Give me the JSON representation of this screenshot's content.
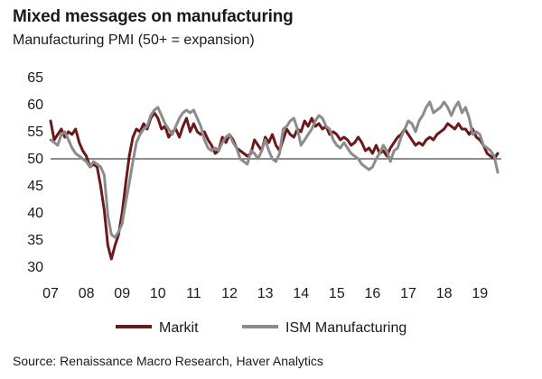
{
  "title": "Mixed messages on manufacturing",
  "subtitle": "Manufacturing PMI (50+ = expansion)",
  "source": "Source: Renaissance Macro Research, Haver Analytics",
  "chart_data": {
    "type": "line",
    "ylim": [
      30,
      65
    ],
    "yticks": [
      30,
      35,
      40,
      45,
      50,
      55,
      60,
      65
    ],
    "xlim": [
      2007,
      2019.6
    ],
    "xticks": [
      {
        "label": "07",
        "value": 2007
      },
      {
        "label": "08",
        "value": 2008
      },
      {
        "label": "09",
        "value": 2009
      },
      {
        "label": "10",
        "value": 2010
      },
      {
        "label": "11",
        "value": 2011
      },
      {
        "label": "12",
        "value": 2012
      },
      {
        "label": "13",
        "value": 2013
      },
      {
        "label": "14",
        "value": 2014
      },
      {
        "label": "15",
        "value": 2015
      },
      {
        "label": "16",
        "value": 2016
      },
      {
        "label": "17",
        "value": 2017
      },
      {
        "label": "18",
        "value": 2018
      },
      {
        "label": "19",
        "value": 2019
      }
    ],
    "reference_line": 50,
    "legend_position": "bottom",
    "series": [
      {
        "name": "Markit",
        "color": "#6b1a1a",
        "points": [
          [
            2007.0,
            57.0
          ],
          [
            2007.1,
            53.5
          ],
          [
            2007.2,
            54.5
          ],
          [
            2007.3,
            55.5
          ],
          [
            2007.4,
            54.0
          ],
          [
            2007.5,
            55.0
          ],
          [
            2007.6,
            54.5
          ],
          [
            2007.7,
            55.5
          ],
          [
            2007.8,
            53.0
          ],
          [
            2007.9,
            51.5
          ],
          [
            2008.0,
            50.5
          ],
          [
            2008.1,
            48.5
          ],
          [
            2008.2,
            49.0
          ],
          [
            2008.3,
            48.5
          ],
          [
            2008.4,
            45.0
          ],
          [
            2008.5,
            40.5
          ],
          [
            2008.6,
            34.0
          ],
          [
            2008.7,
            31.5
          ],
          [
            2008.8,
            34.0
          ],
          [
            2008.9,
            36.0
          ],
          [
            2009.0,
            40.0
          ],
          [
            2009.1,
            45.5
          ],
          [
            2009.2,
            50.5
          ],
          [
            2009.3,
            54.0
          ],
          [
            2009.4,
            55.5
          ],
          [
            2009.5,
            55.0
          ],
          [
            2009.6,
            56.5
          ],
          [
            2009.7,
            55.5
          ],
          [
            2009.8,
            57.5
          ],
          [
            2009.9,
            58.5
          ],
          [
            2010.0,
            57.5
          ],
          [
            2010.1,
            55.5
          ],
          [
            2010.2,
            56.0
          ],
          [
            2010.3,
            54.0
          ],
          [
            2010.4,
            55.0
          ],
          [
            2010.5,
            55.5
          ],
          [
            2010.6,
            54.0
          ],
          [
            2010.7,
            56.0
          ],
          [
            2010.8,
            57.5
          ],
          [
            2010.9,
            55.0
          ],
          [
            2011.0,
            56.5
          ],
          [
            2011.1,
            55.0
          ],
          [
            2011.2,
            54.5
          ],
          [
            2011.3,
            55.0
          ],
          [
            2011.4,
            53.5
          ],
          [
            2011.5,
            52.5
          ],
          [
            2011.6,
            51.0
          ],
          [
            2011.7,
            51.5
          ],
          [
            2011.8,
            54.0
          ],
          [
            2011.9,
            53.0
          ],
          [
            2012.0,
            54.5
          ],
          [
            2012.1,
            53.5
          ],
          [
            2012.2,
            52.0
          ],
          [
            2012.3,
            51.5
          ],
          [
            2012.4,
            51.0
          ],
          [
            2012.5,
            50.5
          ],
          [
            2012.6,
            51.0
          ],
          [
            2012.7,
            53.5
          ],
          [
            2012.8,
            52.5
          ],
          [
            2012.9,
            51.5
          ],
          [
            2013.0,
            54.0
          ],
          [
            2013.1,
            53.0
          ],
          [
            2013.2,
            54.5
          ],
          [
            2013.3,
            52.5
          ],
          [
            2013.4,
            51.5
          ],
          [
            2013.5,
            53.5
          ],
          [
            2013.6,
            55.5
          ],
          [
            2013.7,
            54.5
          ],
          [
            2013.8,
            54.0
          ],
          [
            2013.9,
            55.5
          ],
          [
            2014.0,
            55.0
          ],
          [
            2014.1,
            57.0
          ],
          [
            2014.2,
            56.0
          ],
          [
            2014.3,
            57.5
          ],
          [
            2014.4,
            56.0
          ],
          [
            2014.5,
            56.5
          ],
          [
            2014.6,
            55.5
          ],
          [
            2014.7,
            56.0
          ],
          [
            2014.8,
            54.5
          ],
          [
            2014.9,
            55.0
          ],
          [
            2015.0,
            54.5
          ],
          [
            2015.1,
            53.5
          ],
          [
            2015.2,
            54.0
          ],
          [
            2015.3,
            53.5
          ],
          [
            2015.4,
            52.5
          ],
          [
            2015.5,
            53.0
          ],
          [
            2015.6,
            54.0
          ],
          [
            2015.7,
            53.0
          ],
          [
            2015.8,
            51.5
          ],
          [
            2015.9,
            52.0
          ],
          [
            2016.0,
            51.0
          ],
          [
            2016.1,
            52.5
          ],
          [
            2016.2,
            51.0
          ],
          [
            2016.3,
            51.5
          ],
          [
            2016.4,
            50.5
          ],
          [
            2016.5,
            52.0
          ],
          [
            2016.6,
            53.0
          ],
          [
            2016.7,
            54.0
          ],
          [
            2016.8,
            54.5
          ],
          [
            2016.9,
            55.5
          ],
          [
            2017.0,
            54.5
          ],
          [
            2017.1,
            53.5
          ],
          [
            2017.2,
            52.5
          ],
          [
            2017.3,
            53.0
          ],
          [
            2017.4,
            52.5
          ],
          [
            2017.5,
            53.5
          ],
          [
            2017.6,
            54.0
          ],
          [
            2017.7,
            53.5
          ],
          [
            2017.8,
            54.5
          ],
          [
            2017.9,
            55.0
          ],
          [
            2018.0,
            55.5
          ],
          [
            2018.1,
            56.5
          ],
          [
            2018.2,
            56.0
          ],
          [
            2018.3,
            55.5
          ],
          [
            2018.4,
            56.5
          ],
          [
            2018.5,
            55.5
          ],
          [
            2018.6,
            55.5
          ],
          [
            2018.7,
            54.5
          ],
          [
            2018.8,
            55.5
          ],
          [
            2018.9,
            54.0
          ],
          [
            2019.0,
            53.5
          ],
          [
            2019.1,
            52.5
          ],
          [
            2019.2,
            51.0
          ],
          [
            2019.3,
            50.5
          ],
          [
            2019.4,
            50.0
          ],
          [
            2019.5,
            51.0
          ]
        ]
      },
      {
        "name": "ISM Manufacturing",
        "color": "#8c8c8c",
        "points": [
          [
            2007.0,
            53.5
          ],
          [
            2007.1,
            53.0
          ],
          [
            2007.2,
            52.5
          ],
          [
            2007.3,
            54.5
          ],
          [
            2007.4,
            55.0
          ],
          [
            2007.5,
            53.5
          ],
          [
            2007.6,
            52.0
          ],
          [
            2007.7,
            51.0
          ],
          [
            2007.8,
            50.5
          ],
          [
            2007.9,
            50.0
          ],
          [
            2008.0,
            49.5
          ],
          [
            2008.1,
            48.5
          ],
          [
            2008.2,
            49.5
          ],
          [
            2008.3,
            49.0
          ],
          [
            2008.4,
            48.5
          ],
          [
            2008.5,
            47.0
          ],
          [
            2008.6,
            39.5
          ],
          [
            2008.7,
            36.0
          ],
          [
            2008.8,
            35.5
          ],
          [
            2008.9,
            36.5
          ],
          [
            2009.0,
            38.0
          ],
          [
            2009.1,
            42.0
          ],
          [
            2009.2,
            45.5
          ],
          [
            2009.3,
            49.5
          ],
          [
            2009.4,
            53.0
          ],
          [
            2009.5,
            54.5
          ],
          [
            2009.6,
            55.5
          ],
          [
            2009.7,
            56.0
          ],
          [
            2009.8,
            58.0
          ],
          [
            2009.9,
            59.0
          ],
          [
            2010.0,
            59.5
          ],
          [
            2010.1,
            58.0
          ],
          [
            2010.2,
            56.5
          ],
          [
            2010.3,
            55.5
          ],
          [
            2010.4,
            54.5
          ],
          [
            2010.5,
            56.0
          ],
          [
            2010.6,
            57.5
          ],
          [
            2010.7,
            58.5
          ],
          [
            2010.8,
            59.0
          ],
          [
            2010.9,
            58.5
          ],
          [
            2011.0,
            59.0
          ],
          [
            2011.1,
            57.5
          ],
          [
            2011.2,
            56.0
          ],
          [
            2011.3,
            53.5
          ],
          [
            2011.4,
            52.0
          ],
          [
            2011.5,
            51.5
          ],
          [
            2011.6,
            52.0
          ],
          [
            2011.7,
            51.5
          ],
          [
            2011.8,
            53.0
          ],
          [
            2011.9,
            54.0
          ],
          [
            2012.0,
            54.5
          ],
          [
            2012.1,
            53.0
          ],
          [
            2012.2,
            52.0
          ],
          [
            2012.3,
            50.0
          ],
          [
            2012.4,
            49.5
          ],
          [
            2012.5,
            49.0
          ],
          [
            2012.6,
            51.5
          ],
          [
            2012.7,
            51.0
          ],
          [
            2012.8,
            50.0
          ],
          [
            2012.9,
            51.5
          ],
          [
            2013.0,
            53.5
          ],
          [
            2013.1,
            51.5
          ],
          [
            2013.2,
            50.0
          ],
          [
            2013.3,
            49.5
          ],
          [
            2013.4,
            51.0
          ],
          [
            2013.5,
            55.5
          ],
          [
            2013.6,
            56.0
          ],
          [
            2013.7,
            57.0
          ],
          [
            2013.8,
            57.5
          ],
          [
            2013.9,
            55.5
          ],
          [
            2014.0,
            52.5
          ],
          [
            2014.1,
            53.5
          ],
          [
            2014.2,
            54.5
          ],
          [
            2014.3,
            55.5
          ],
          [
            2014.4,
            57.0
          ],
          [
            2014.5,
            58.0
          ],
          [
            2014.6,
            57.5
          ],
          [
            2014.7,
            56.0
          ],
          [
            2014.8,
            55.5
          ],
          [
            2014.9,
            53.5
          ],
          [
            2015.0,
            52.5
          ],
          [
            2015.1,
            52.0
          ],
          [
            2015.2,
            53.0
          ],
          [
            2015.3,
            52.0
          ],
          [
            2015.4,
            51.0
          ],
          [
            2015.5,
            50.5
          ],
          [
            2015.6,
            50.0
          ],
          [
            2015.7,
            49.0
          ],
          [
            2015.8,
            48.5
          ],
          [
            2015.9,
            48.0
          ],
          [
            2016.0,
            48.5
          ],
          [
            2016.1,
            50.0
          ],
          [
            2016.2,
            51.0
          ],
          [
            2016.3,
            52.5
          ],
          [
            2016.4,
            51.5
          ],
          [
            2016.5,
            49.5
          ],
          [
            2016.6,
            51.5
          ],
          [
            2016.7,
            52.0
          ],
          [
            2016.8,
            54.0
          ],
          [
            2016.9,
            55.5
          ],
          [
            2017.0,
            57.0
          ],
          [
            2017.1,
            56.5
          ],
          [
            2017.2,
            55.0
          ],
          [
            2017.3,
            57.0
          ],
          [
            2017.4,
            58.0
          ],
          [
            2017.5,
            59.5
          ],
          [
            2017.6,
            60.5
          ],
          [
            2017.7,
            58.5
          ],
          [
            2017.8,
            59.0
          ],
          [
            2017.9,
            59.5
          ],
          [
            2018.0,
            60.5
          ],
          [
            2018.1,
            59.5
          ],
          [
            2018.2,
            58.0
          ],
          [
            2018.3,
            59.5
          ],
          [
            2018.4,
            60.5
          ],
          [
            2018.5,
            58.5
          ],
          [
            2018.6,
            59.5
          ],
          [
            2018.7,
            57.5
          ],
          [
            2018.8,
            54.5
          ],
          [
            2018.9,
            55.0
          ],
          [
            2019.0,
            54.5
          ],
          [
            2019.1,
            52.5
          ],
          [
            2019.2,
            52.0
          ],
          [
            2019.3,
            51.5
          ],
          [
            2019.4,
            50.5
          ],
          [
            2019.5,
            47.5
          ]
        ]
      }
    ]
  }
}
